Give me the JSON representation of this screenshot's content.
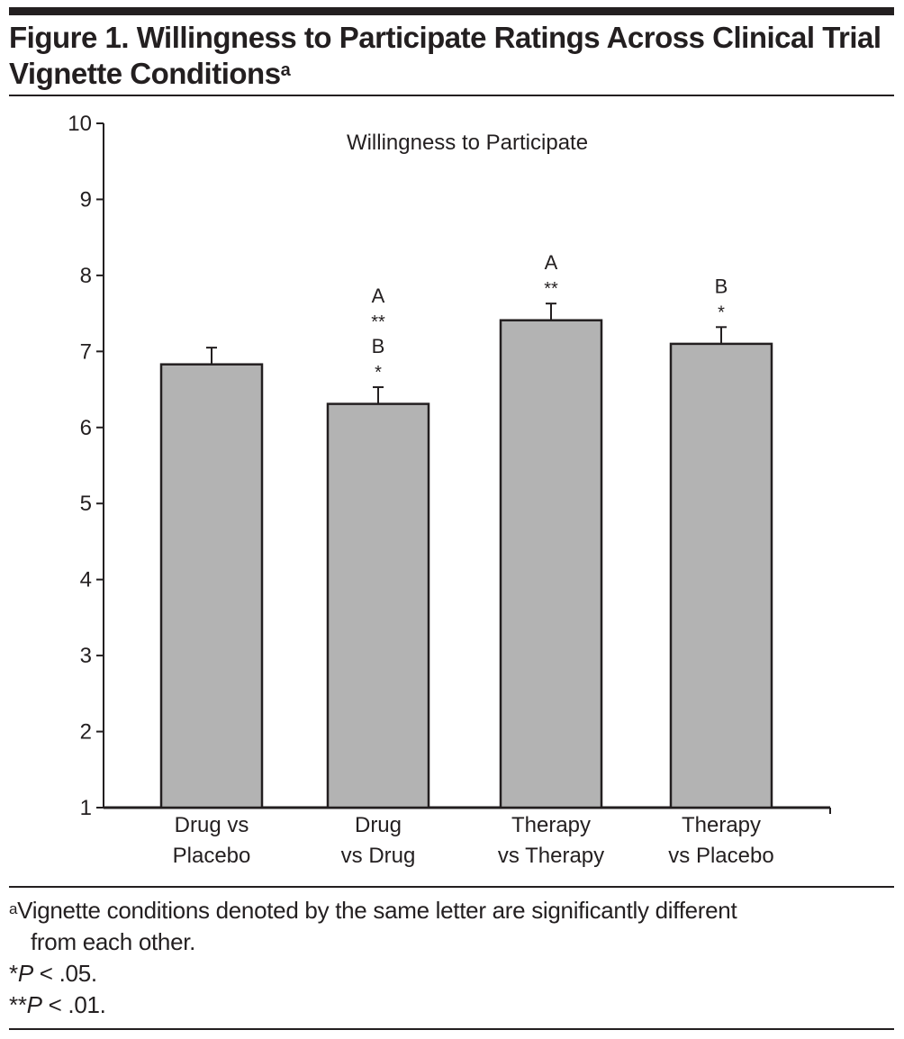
{
  "figure": {
    "title": "Figure 1. Willingness to Participate Ratings Across Clinical Trial Vignette Conditions",
    "title_marker": "a",
    "footnotes": {
      "a_marker": "a",
      "a_text": "Vignette conditions denoted by the same letter are significantly different",
      "a_text_cont": "from each other.",
      "p05_stars": "*",
      "p05_p": "P",
      "p05_rest": " < .05.",
      "p01_stars": "**",
      "p01_p": "P",
      "p01_rest": " < .01."
    }
  },
  "chart_data": {
    "type": "bar",
    "title": "Willingness to Participate",
    "xlabel": "",
    "ylabel": "",
    "ylim": [
      1,
      10
    ],
    "yticks": [
      "1",
      "2",
      "3",
      "4",
      "5",
      "6",
      "7",
      "8",
      "9",
      "10"
    ],
    "grid": false,
    "categories": [
      [
        "Drug vs",
        "Placebo"
      ],
      [
        "Drug",
        "vs Drug"
      ],
      [
        "Therapy",
        "vs Therapy"
      ],
      [
        "Therapy",
        "vs Placebo"
      ]
    ],
    "values": [
      6.83,
      6.31,
      7.41,
      7.1
    ],
    "error_upper": [
      7.05,
      6.53,
      7.63,
      7.32
    ],
    "annotations": [
      [],
      [
        "A",
        "**",
        "B",
        "*"
      ],
      [
        "A",
        "**"
      ],
      [
        "B",
        "*"
      ]
    ],
    "colors": {
      "bar": "#b3b3b3",
      "stroke": "#231f20"
    }
  }
}
